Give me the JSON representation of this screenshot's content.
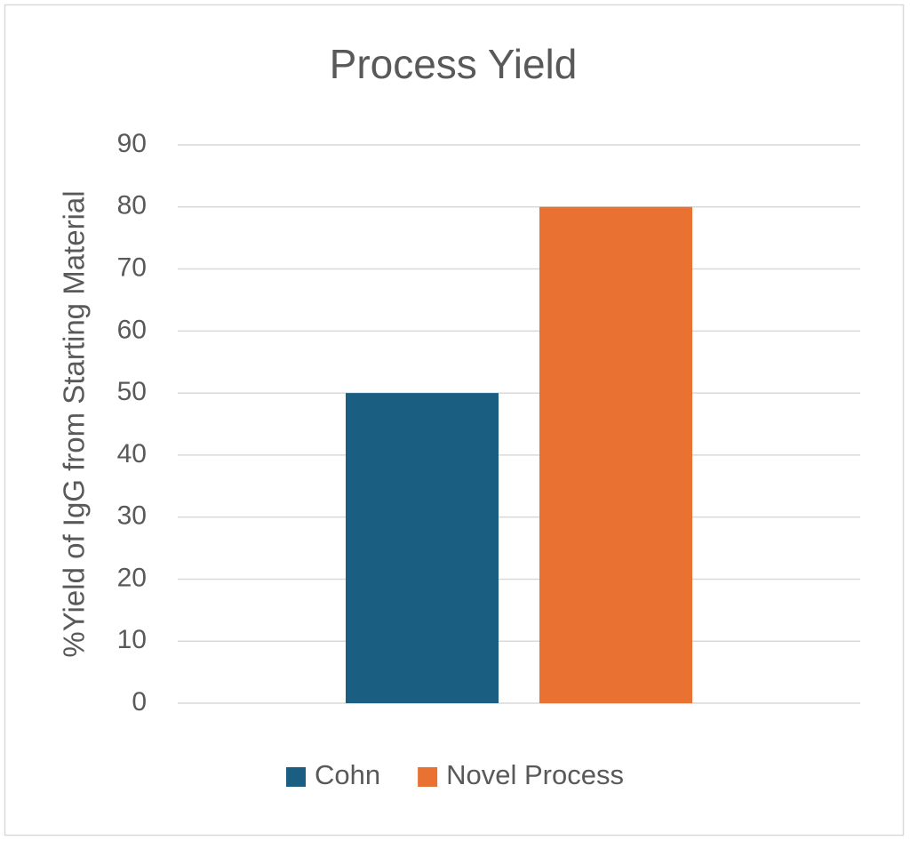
{
  "chart_data": {
    "type": "bar",
    "title": "Process Yield",
    "y_label": "%Yield of IgG from Starting Material",
    "categories": [
      null
    ],
    "series": [
      {
        "name": "Cohn",
        "color": "#1a5f82",
        "values": [
          50
        ]
      },
      {
        "name": "Novel Process",
        "color": "#e97132",
        "values": [
          80
        ]
      }
    ],
    "ylim": [
      0,
      90
    ],
    "yticks": [
      0,
      10,
      20,
      30,
      40,
      50,
      60,
      70,
      80,
      90
    ],
    "grid": true,
    "legend": "bottom"
  }
}
